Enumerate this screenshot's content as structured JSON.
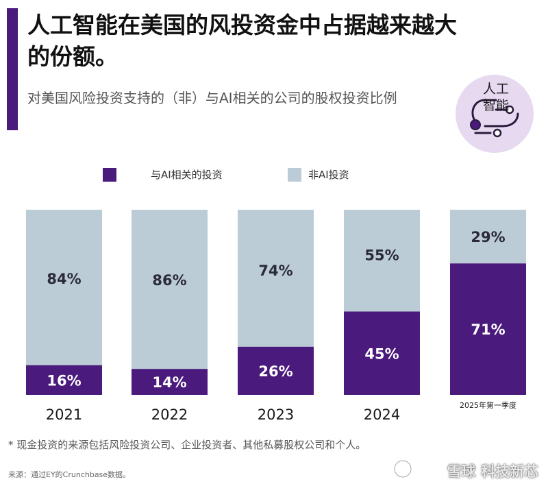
{
  "header": {
    "title": "人工智能在美国的风投资金中占据越来越大的份额。",
    "subtitle": "对美国风险投资支持的（非）与AI相关的公司的股权投资比例",
    "badge_text_line1": "人工",
    "badge_text_line2": "智能"
  },
  "legend": {
    "ai_label": "与AI相关的投资",
    "non_ai_label": "非AI投资"
  },
  "colors": {
    "ai": "#4a1a7d",
    "non_ai": "#bcccd6",
    "accent": "#4a1a7d",
    "badge_bg": "#e6d9f0"
  },
  "chart_data": {
    "type": "bar",
    "stacked": true,
    "percent": true,
    "categories": [
      "2021",
      "2022",
      "2023",
      "2024",
      "2025年第一季度"
    ],
    "series": [
      {
        "name": "与AI相关的投资",
        "values": [
          16,
          14,
          26,
          45,
          71
        ],
        "color": "#4a1a7d"
      },
      {
        "name": "非AI投资",
        "values": [
          84,
          86,
          74,
          55,
          29
        ],
        "color": "#bcccd6"
      }
    ],
    "value_labels": {
      "ai": [
        "16%",
        "14%",
        "26%",
        "45%",
        "71%"
      ],
      "non_ai": [
        "84%",
        "86%",
        "74%",
        "55%",
        "29%"
      ]
    },
    "ylim": [
      0,
      100
    ],
    "grid": false,
    "legend_position": "top-left"
  },
  "footer": {
    "footnote": "* 现金投资的来源包括风险投资公司、企业投资者、其他私募股权公司和个人。",
    "source": "来源：通过EY的Crunchbase数据。",
    "watermark": "雪球 科技新芯"
  }
}
